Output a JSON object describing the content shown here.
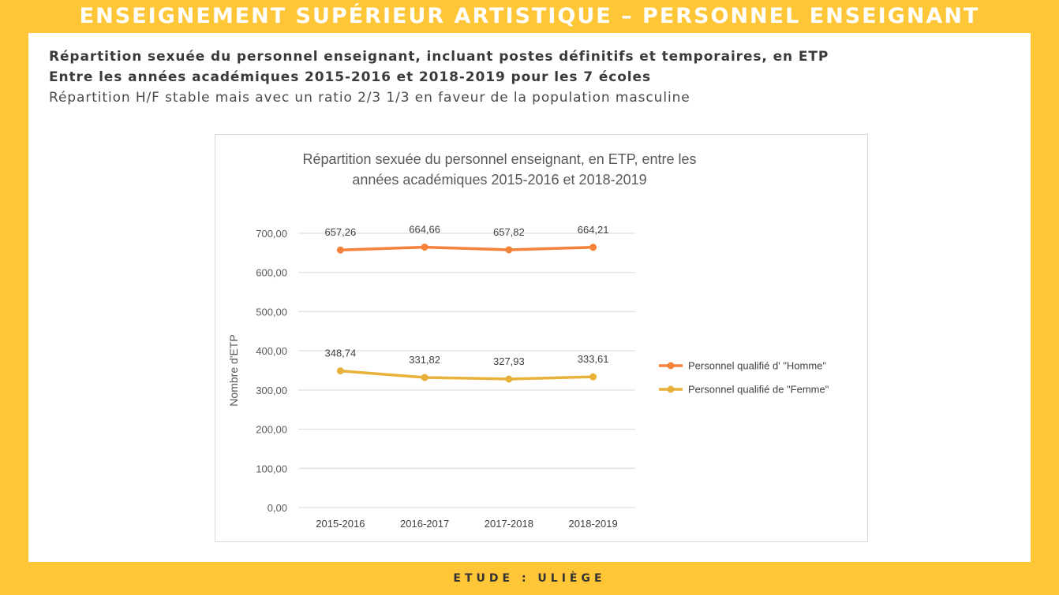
{
  "banner": {
    "title": "ENSEIGNEMENT SUPÉRIEUR ARTISTIQUE – PERSONNEL ENSEIGNANT"
  },
  "subtitles": {
    "line1": "Répartition sexuée du personnel enseignant, incluant postes définitifs et temporaires, en ETP",
    "line2": "Entre les années académiques 2015-2016 et 2018-2019 pour les 7 écoles",
    "line3": "Répartition H/F stable mais avec un ratio 2/3 1/3 en faveur de la population masculine"
  },
  "footer": {
    "label": "ETUDE : ULIÈGE"
  },
  "colors": {
    "background": "#FFC637",
    "homme": "#F4823A",
    "femme": "#E8B13A"
  },
  "chart_data": {
    "type": "line",
    "title_line1": "Répartition sexuée du personnel enseignant, en ETP, entre les",
    "title_line2": "années académiques 2015-2016 et 2018-2019",
    "ylabel": "Nombre d'ETP",
    "xlabel": "",
    "ylim": [
      0,
      700
    ],
    "yticks": [
      "0,00",
      "100,00",
      "200,00",
      "300,00",
      "400,00",
      "500,00",
      "600,00",
      "700,00"
    ],
    "categories": [
      "2015-2016",
      "2016-2017",
      "2017-2018",
      "2018-2019"
    ],
    "grid": true,
    "legend_position": "right",
    "series": [
      {
        "name": "Personnel qualifié d' \"Homme\"",
        "values": [
          657.26,
          664.66,
          657.82,
          664.21
        ],
        "labels": [
          "657,26",
          "664,66",
          "657,82",
          "664,21"
        ],
        "color": "#F4823A"
      },
      {
        "name": "Personnel qualifié de \"Femme\"",
        "values": [
          348.74,
          331.82,
          327.93,
          333.61
        ],
        "labels": [
          "348,74",
          "331,82",
          "327,93",
          "333,61"
        ],
        "color": "#E8B13A"
      }
    ]
  }
}
